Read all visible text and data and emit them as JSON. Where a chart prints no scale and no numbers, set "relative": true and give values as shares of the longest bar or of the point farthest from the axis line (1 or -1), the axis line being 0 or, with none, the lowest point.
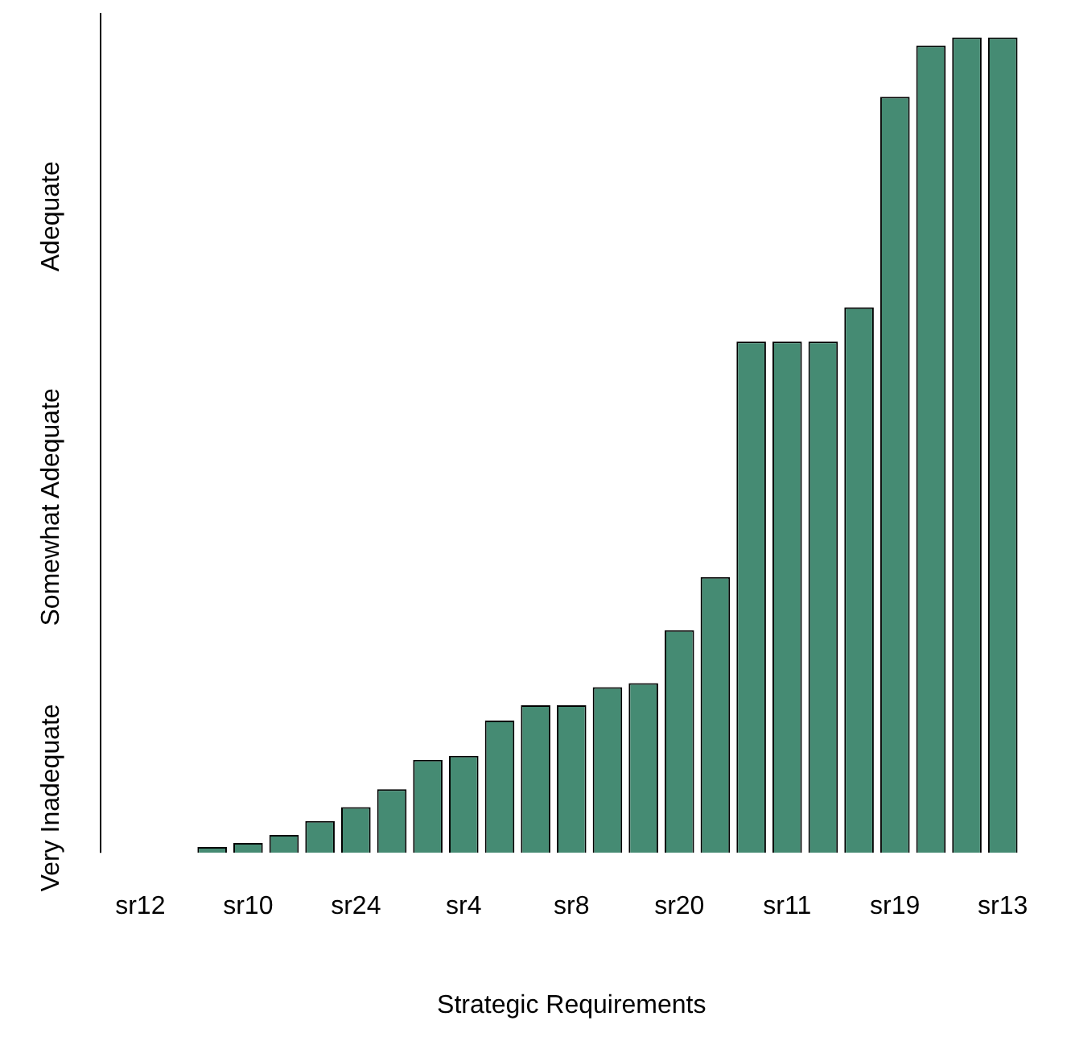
{
  "chart_data": {
    "type": "bar",
    "relative": true,
    "xlabel": "Strategic Requirements",
    "categories": [
      "sr12",
      null,
      null,
      "sr10",
      null,
      null,
      "sr24",
      null,
      null,
      "sr4",
      null,
      null,
      "sr8",
      null,
      null,
      "sr20",
      null,
      null,
      "sr11",
      null,
      null,
      "sr19",
      null,
      null,
      "sr13"
    ],
    "values": [
      0,
      0,
      0.007,
      0.012,
      0.022,
      0.039,
      0.056,
      0.078,
      0.114,
      0.119,
      0.162,
      0.181,
      0.181,
      0.203,
      0.208,
      0.273,
      0.338,
      0.627,
      0.627,
      0.627,
      0.669,
      0.927,
      0.99,
      1,
      1
    ],
    "color": "#458b73",
    "annotations": [
      "Very Inadequate",
      "Somewhat Adequate",
      "Adequate"
    ],
    "grid": false,
    "legend": false
  }
}
